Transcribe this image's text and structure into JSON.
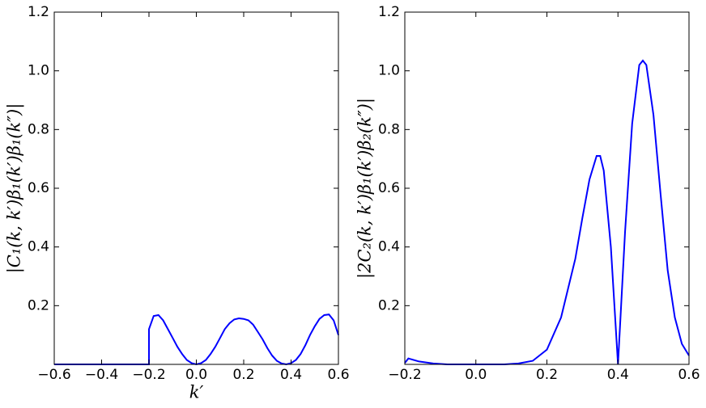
{
  "chart_data": [
    {
      "type": "line",
      "ylabel": "|C₁(k, k′)β₁(k′)β₁(k″)|",
      "xlabel": "k′",
      "xlim": [
        -0.6,
        0.6
      ],
      "xticks": [
        {
          "value": -0.6,
          "label": "−0.6"
        },
        {
          "value": -0.4,
          "label": "−0.4"
        },
        {
          "value": -0.2,
          "label": "−0.2"
        },
        {
          "value": 0,
          "label": "0.0"
        },
        0.2,
        0.4,
        0.6
      ],
      "ylim": [
        0,
        1.2
      ],
      "yticks": [
        0.2,
        0.4,
        0.6,
        0.8,
        {
          "value": 1,
          "label": "1.0"
        },
        1.2
      ],
      "series": [
        {
          "color": "#0000ff",
          "x": [
            -0.6,
            -0.2,
            -0.2,
            -0.18,
            -0.16,
            -0.14,
            -0.12,
            -0.1,
            -0.08,
            -0.06,
            -0.04,
            -0.02,
            0,
            0.02,
            0.04,
            0.06,
            0.08,
            0.1,
            0.12,
            0.14,
            0.16,
            0.18,
            0.2,
            0.22,
            0.24,
            0.26,
            0.28,
            0.3,
            0.32,
            0.34,
            0.36,
            0.38,
            0.4,
            0.42,
            0.44,
            0.46,
            0.48,
            0.5,
            0.52,
            0.54,
            0.56,
            0.58,
            0.6
          ],
          "values": [
            0,
            0,
            0.12,
            0.165,
            0.168,
            0.15,
            0.12,
            0.09,
            0.06,
            0.035,
            0.015,
            0.004,
            0,
            0.004,
            0.015,
            0.035,
            0.06,
            0.09,
            0.12,
            0.14,
            0.153,
            0.157,
            0.155,
            0.15,
            0.135,
            0.11,
            0.085,
            0.055,
            0.03,
            0.012,
            0.003,
            0,
            0.004,
            0.015,
            0.035,
            0.065,
            0.1,
            0.13,
            0.155,
            0.168,
            0.17,
            0.15,
            0.1
          ]
        }
      ]
    },
    {
      "type": "line",
      "ylabel": "|2C₂(k, k′)β₁(k′)β₂(k″)|",
      "xlim": [
        -0.2,
        0.6
      ],
      "xticks": [
        {
          "value": -0.2,
          "label": "−0.2"
        },
        {
          "value": 0,
          "label": "0.0"
        },
        0.2,
        0.4,
        0.6
      ],
      "ylim": [
        0,
        1.2
      ],
      "yticks": [
        0.2,
        0.4,
        0.6,
        0.8,
        {
          "value": 1,
          "label": "1.0"
        },
        1.2
      ],
      "series": [
        {
          "color": "#0000ff",
          "x": [
            -0.2,
            -0.19,
            -0.16,
            -0.12,
            -0.08,
            0,
            0.08,
            0.12,
            0.16,
            0.2,
            0.24,
            0.28,
            0.3,
            0.32,
            0.34,
            0.35,
            0.36,
            0.38,
            0.4,
            0.42,
            0.44,
            0.46,
            0.47,
            0.48,
            0.5,
            0.52,
            0.54,
            0.56,
            0.58,
            0.6
          ],
          "values": [
            0.005,
            0.02,
            0.01,
            0.003,
            0,
            0,
            0,
            0.003,
            0.012,
            0.05,
            0.16,
            0.36,
            0.5,
            0.63,
            0.71,
            0.71,
            0.66,
            0.4,
            0,
            0.45,
            0.82,
            1.02,
            1.035,
            1.02,
            0.85,
            0.58,
            0.32,
            0.16,
            0.07,
            0.03
          ]
        }
      ]
    }
  ]
}
